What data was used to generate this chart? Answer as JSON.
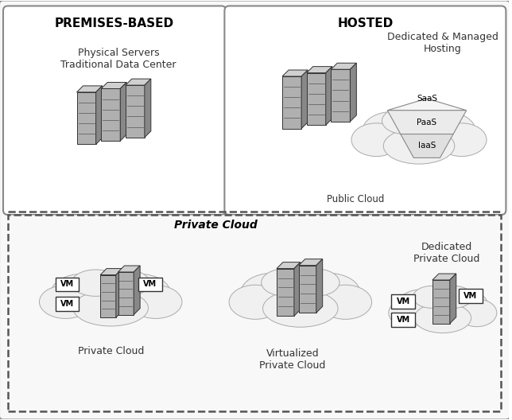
{
  "bg_color": "#ffffff",
  "outer_border_color": "#888888",
  "section_bg_top_left": "#ffffff",
  "section_bg_top_right": "#ffffff",
  "section_bg_bottom": "#ffffff",
  "dashed_line_color": "#555555",
  "title_premises": "PREMISES-BASED",
  "title_hosted": "HOSTED",
  "text_physical": "Physical Servers\nTraditional Data Center",
  "text_dedicated_managed": "Dedicated & Managed\nHosting",
  "text_public_cloud": "Public Cloud",
  "text_private_cloud_label": "Private Cloud",
  "text_private_cloud_bottom_left": "Private Cloud",
  "text_virtualized_private": "Virtualized\nPrivate Cloud",
  "text_dedicated_private": "Dedicated\nPrivate Cloud",
  "text_saas": "SaaS",
  "text_paas": "PaaS",
  "text_iaas": "IaaS",
  "server_color_dark": "#999999",
  "server_color_mid": "#bbbbbb",
  "server_color_light": "#dddddd",
  "server_color_top": "#cccccc",
  "cloud_fill": "#f0f0f0",
  "cloud_edge": "#aaaaaa",
  "vm_box_fill": "#ffffff",
  "vm_box_edge": "#333333",
  "pyramid_fill": "#eeeeee",
  "pyramid_edge": "#888888"
}
